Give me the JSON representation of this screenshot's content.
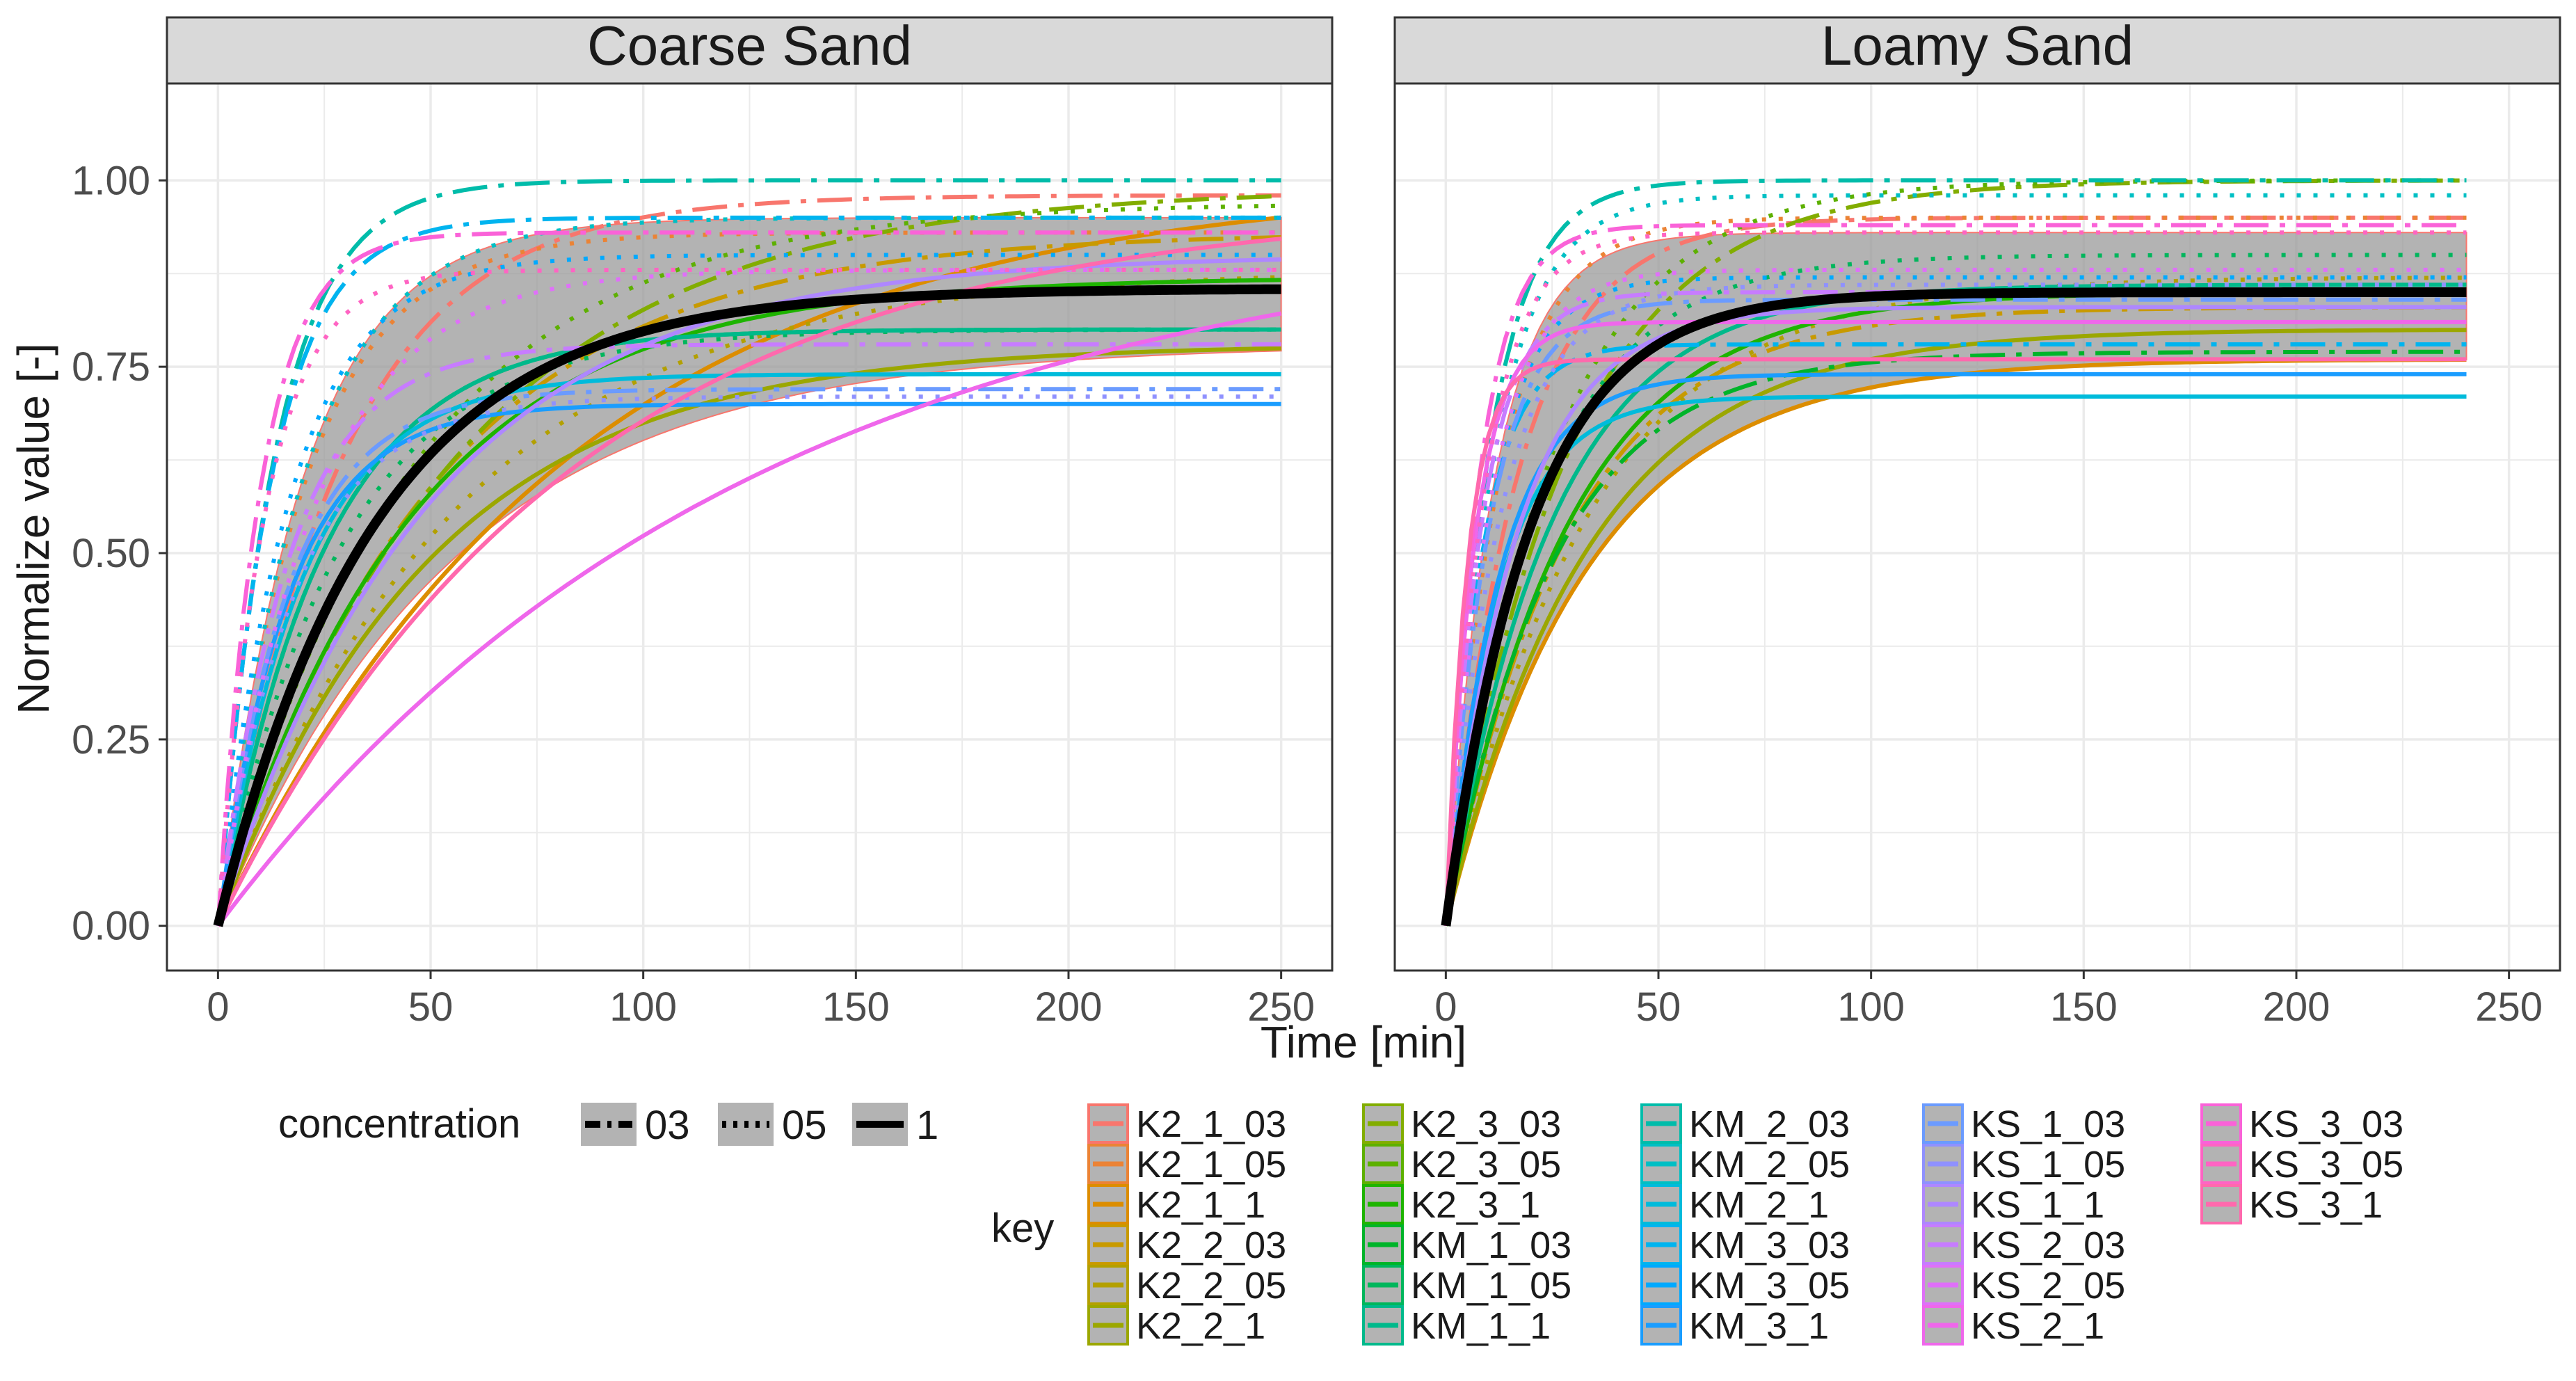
{
  "chart_data": {
    "type": "line",
    "xlabel": "Time [min]",
    "ylabel": "Normalize value [-]",
    "y_ticks": [
      "0.00",
      "0.25",
      "0.50",
      "0.75",
      "1.00"
    ],
    "y_tick_values": [
      0,
      0.25,
      0.5,
      0.75,
      1.0
    ],
    "x_ticks": [
      "0",
      "50",
      "100",
      "150",
      "200",
      "250"
    ],
    "x_tick_values": [
      0,
      50,
      100,
      150,
      200,
      250
    ],
    "xlim": [
      -12,
      262
    ],
    "ylim": [
      -0.06,
      1.13
    ],
    "grid": true,
    "colors": {
      "strip_bg": "#d9d9d9",
      "panel_border": "#333333",
      "grid": "#ebebeb",
      "mean_line": "#000000",
      "ribbon": "#999999",
      "text": "#1a1a1a",
      "axis_text": "#4d4d4d"
    },
    "legend": {
      "concentration_title": "concentration",
      "concentration_items": [
        {
          "label": "03",
          "dash": "dotdash"
        },
        {
          "label": "05",
          "dash": "dotted"
        },
        {
          "label": "1",
          "dash": "solid"
        }
      ],
      "key_title": "key",
      "key_columns": [
        [
          "K2_1_03",
          "K2_1_05",
          "K2_1_1",
          "K2_2_03",
          "K2_2_05",
          "K2_2_1"
        ],
        [
          "K2_3_03",
          "K2_3_05",
          "K2_3_1",
          "KM_1_03",
          "KM_1_05",
          "KM_1_1"
        ],
        [
          "KM_2_03",
          "KM_2_05",
          "KM_2_1",
          "KM_3_03",
          "KM_3_05",
          "KM_3_1"
        ],
        [
          "KS_1_03",
          "KS_1_05",
          "KS_1_1",
          "KS_2_03",
          "KS_2_05",
          "KS_2_1"
        ],
        [
          "KS_3_03",
          "KS_3_05",
          "KS_3_1"
        ]
      ],
      "key_colors": [
        [
          "#F8766D",
          "#EB8335",
          "#DC8D00",
          "#C89A00",
          "#B3A000",
          "#9BA700"
        ],
        [
          "#82AD00",
          "#5DB000",
          "#1EB400",
          "#00B42A",
          "#00B65C",
          "#00B98B"
        ],
        [
          "#00BCAA",
          "#00BFC4",
          "#00BBDB",
          "#00B4EF",
          "#00A9FF",
          "#1A9DFF"
        ],
        [
          "#6B9BFF",
          "#8F91FF",
          "#AE87FF",
          "#C77CFF",
          "#DF70F8",
          "#EF67EB"
        ],
        [
          "#FA62D8",
          "#FF64C3",
          "#FF69AD"
        ]
      ]
    },
    "panels": [
      {
        "title": "Coarse Sand",
        "mean": {
          "A": 0.855,
          "k": 0.027,
          "xmax": 250
        },
        "ribbon": {
          "upper_A": 0.95,
          "upper_k": 0.05,
          "lower_A": 0.78,
          "lower_k": 0.018
        },
        "series": [
          {
            "key": "K2_1_03",
            "A": 0.98,
            "k": 0.035,
            "c": "03",
            "xmax": 250
          },
          {
            "key": "K2_1_05",
            "A": 0.93,
            "k": 0.05,
            "c": "05",
            "xmax": 250
          },
          {
            "key": "K2_1_1",
            "A": 1.0,
            "k": 0.012,
            "c": "1",
            "xmax": 250
          },
          {
            "key": "K2_2_03",
            "A": 0.93,
            "k": 0.02,
            "c": "03",
            "xmax": 250
          },
          {
            "key": "K2_2_05",
            "A": 0.88,
            "k": 0.018,
            "c": "05",
            "xmax": 250
          },
          {
            "key": "K2_2_1",
            "A": 0.78,
            "k": 0.02,
            "c": "1",
            "xmax": 250
          },
          {
            "key": "K2_3_03",
            "A": 0.99,
            "k": 0.018,
            "c": "03",
            "xmax": 250
          },
          {
            "key": "K2_3_05",
            "A": 0.97,
            "k": 0.022,
            "c": "05",
            "xmax": 250
          },
          {
            "key": "K2_3_1",
            "A": 0.87,
            "k": 0.022,
            "c": "1",
            "xmax": 250
          },
          {
            "key": "KM_1_03",
            "A": 0.8,
            "k": 0.04,
            "c": "03",
            "xmax": 250
          },
          {
            "key": "KM_1_05",
            "A": 0.8,
            "k": 0.035,
            "c": "05",
            "xmax": 250
          },
          {
            "key": "KM_1_1",
            "A": 0.8,
            "k": 0.04,
            "c": "1",
            "xmax": 250
          },
          {
            "key": "KM_2_03",
            "A": 1.0,
            "k": 0.075,
            "c": "03",
            "xmax": 250
          },
          {
            "key": "KM_2_05",
            "A": 0.95,
            "k": 0.05,
            "c": "05",
            "xmax": 250
          },
          {
            "key": "KM_2_1",
            "A": 0.74,
            "k": 0.05,
            "c": "1",
            "xmax": 250
          },
          {
            "key": "KM_3_03",
            "A": 0.95,
            "k": 0.08,
            "c": "03",
            "xmax": 250
          },
          {
            "key": "KM_3_05",
            "A": 0.9,
            "k": 0.06,
            "c": "05",
            "xmax": 250
          },
          {
            "key": "KM_3_1",
            "A": 0.7,
            "k": 0.06,
            "c": "1",
            "xmax": 250
          },
          {
            "key": "KS_1_03",
            "A": 0.72,
            "k": 0.06,
            "c": "03",
            "xmax": 250
          },
          {
            "key": "KS_1_05",
            "A": 0.71,
            "k": 0.055,
            "c": "05",
            "xmax": 250
          },
          {
            "key": "KS_1_1",
            "A": 0.9,
            "k": 0.02,
            "c": "1",
            "xmax": 250
          },
          {
            "key": "KS_2_03",
            "A": 0.78,
            "k": 0.06,
            "c": "03",
            "xmax": 250
          },
          {
            "key": "KS_2_05",
            "A": 0.88,
            "k": 0.045,
            "c": "05",
            "xmax": 250
          },
          {
            "key": "KS_2_1",
            "A": 0.95,
            "k": 0.008,
            "c": "1",
            "xmax": 250
          },
          {
            "key": "KS_3_03",
            "A": 0.93,
            "k": 0.1,
            "c": "03",
            "xmax": 250
          },
          {
            "key": "KS_3_05",
            "A": 0.88,
            "k": 0.09,
            "c": "05",
            "xmax": 250
          },
          {
            "key": "KS_3_1",
            "A": 0.97,
            "k": 0.012,
            "c": "1",
            "xmax": 250
          }
        ]
      },
      {
        "title": "Loamy Sand",
        "mean": {
          "A": 0.85,
          "k": 0.05,
          "xmax": 240
        },
        "ribbon": {
          "upper_A": 0.93,
          "upper_k": 0.09,
          "lower_A": 0.76,
          "lower_k": 0.03
        },
        "series": [
          {
            "key": "K2_1_03",
            "A": 0.95,
            "k": 0.06,
            "c": "03",
            "xmax": 240
          },
          {
            "key": "K2_1_05",
            "A": 0.95,
            "k": 0.08,
            "c": "05",
            "xmax": 240
          },
          {
            "key": "K2_1_1",
            "A": 0.76,
            "k": 0.03,
            "c": "1",
            "xmax": 240
          },
          {
            "key": "K2_2_03",
            "A": 0.83,
            "k": 0.035,
            "c": "03",
            "xmax": 240
          },
          {
            "key": "K2_2_05",
            "A": 0.87,
            "k": 0.03,
            "c": "05",
            "xmax": 240
          },
          {
            "key": "K2_2_1",
            "A": 0.8,
            "k": 0.03,
            "c": "1",
            "xmax": 240
          },
          {
            "key": "K2_3_03",
            "A": 1.0,
            "k": 0.035,
            "c": "03",
            "xmax": 240
          },
          {
            "key": "K2_3_05",
            "A": 1.0,
            "k": 0.04,
            "c": "05",
            "xmax": 240
          },
          {
            "key": "K2_3_1",
            "A": 0.85,
            "k": 0.035,
            "c": "1",
            "xmax": 240
          },
          {
            "key": "KM_1_03",
            "A": 0.77,
            "k": 0.04,
            "c": "03",
            "xmax": 240
          },
          {
            "key": "KM_1_05",
            "A": 0.9,
            "k": 0.045,
            "c": "05",
            "xmax": 240
          },
          {
            "key": "KM_1_1",
            "A": 0.86,
            "k": 0.04,
            "c": "1",
            "xmax": 240
          },
          {
            "key": "KM_2_03",
            "A": 1.0,
            "k": 0.1,
            "c": "03",
            "xmax": 240
          },
          {
            "key": "KM_2_05",
            "A": 0.98,
            "k": 0.09,
            "c": "05",
            "xmax": 240
          },
          {
            "key": "KM_2_1",
            "A": 0.71,
            "k": 0.08,
            "c": "1",
            "xmax": 240
          },
          {
            "key": "KM_3_03",
            "A": 0.78,
            "k": 0.12,
            "c": "03",
            "xmax": 240
          },
          {
            "key": "KM_3_05",
            "A": 0.87,
            "k": 0.1,
            "c": "05",
            "xmax": 240
          },
          {
            "key": "KM_3_1",
            "A": 0.74,
            "k": 0.08,
            "c": "1",
            "xmax": 240
          },
          {
            "key": "KS_1_03",
            "A": 0.84,
            "k": 0.1,
            "c": "03",
            "xmax": 240
          },
          {
            "key": "KS_1_05",
            "A": 0.86,
            "k": 0.08,
            "c": "05",
            "xmax": 240
          },
          {
            "key": "KS_1_1",
            "A": 0.83,
            "k": 0.06,
            "c": "1",
            "xmax": 240
          },
          {
            "key": "KS_2_03",
            "A": 0.85,
            "k": 0.12,
            "c": "03",
            "xmax": 240
          },
          {
            "key": "KS_2_05",
            "A": 0.88,
            "k": 0.1,
            "c": "05",
            "xmax": 240
          },
          {
            "key": "KS_2_1",
            "A": 0.81,
            "k": 0.15,
            "c": "1",
            "xmax": 240
          },
          {
            "key": "KS_3_03",
            "A": 0.94,
            "k": 0.13,
            "c": "03",
            "xmax": 240
          },
          {
            "key": "KS_3_05",
            "A": 0.93,
            "k": 0.11,
            "c": "05",
            "xmax": 240
          },
          {
            "key": "KS_3_1",
            "A": 0.76,
            "k": 0.2,
            "c": "1",
            "xmax": 240
          }
        ]
      }
    ]
  }
}
